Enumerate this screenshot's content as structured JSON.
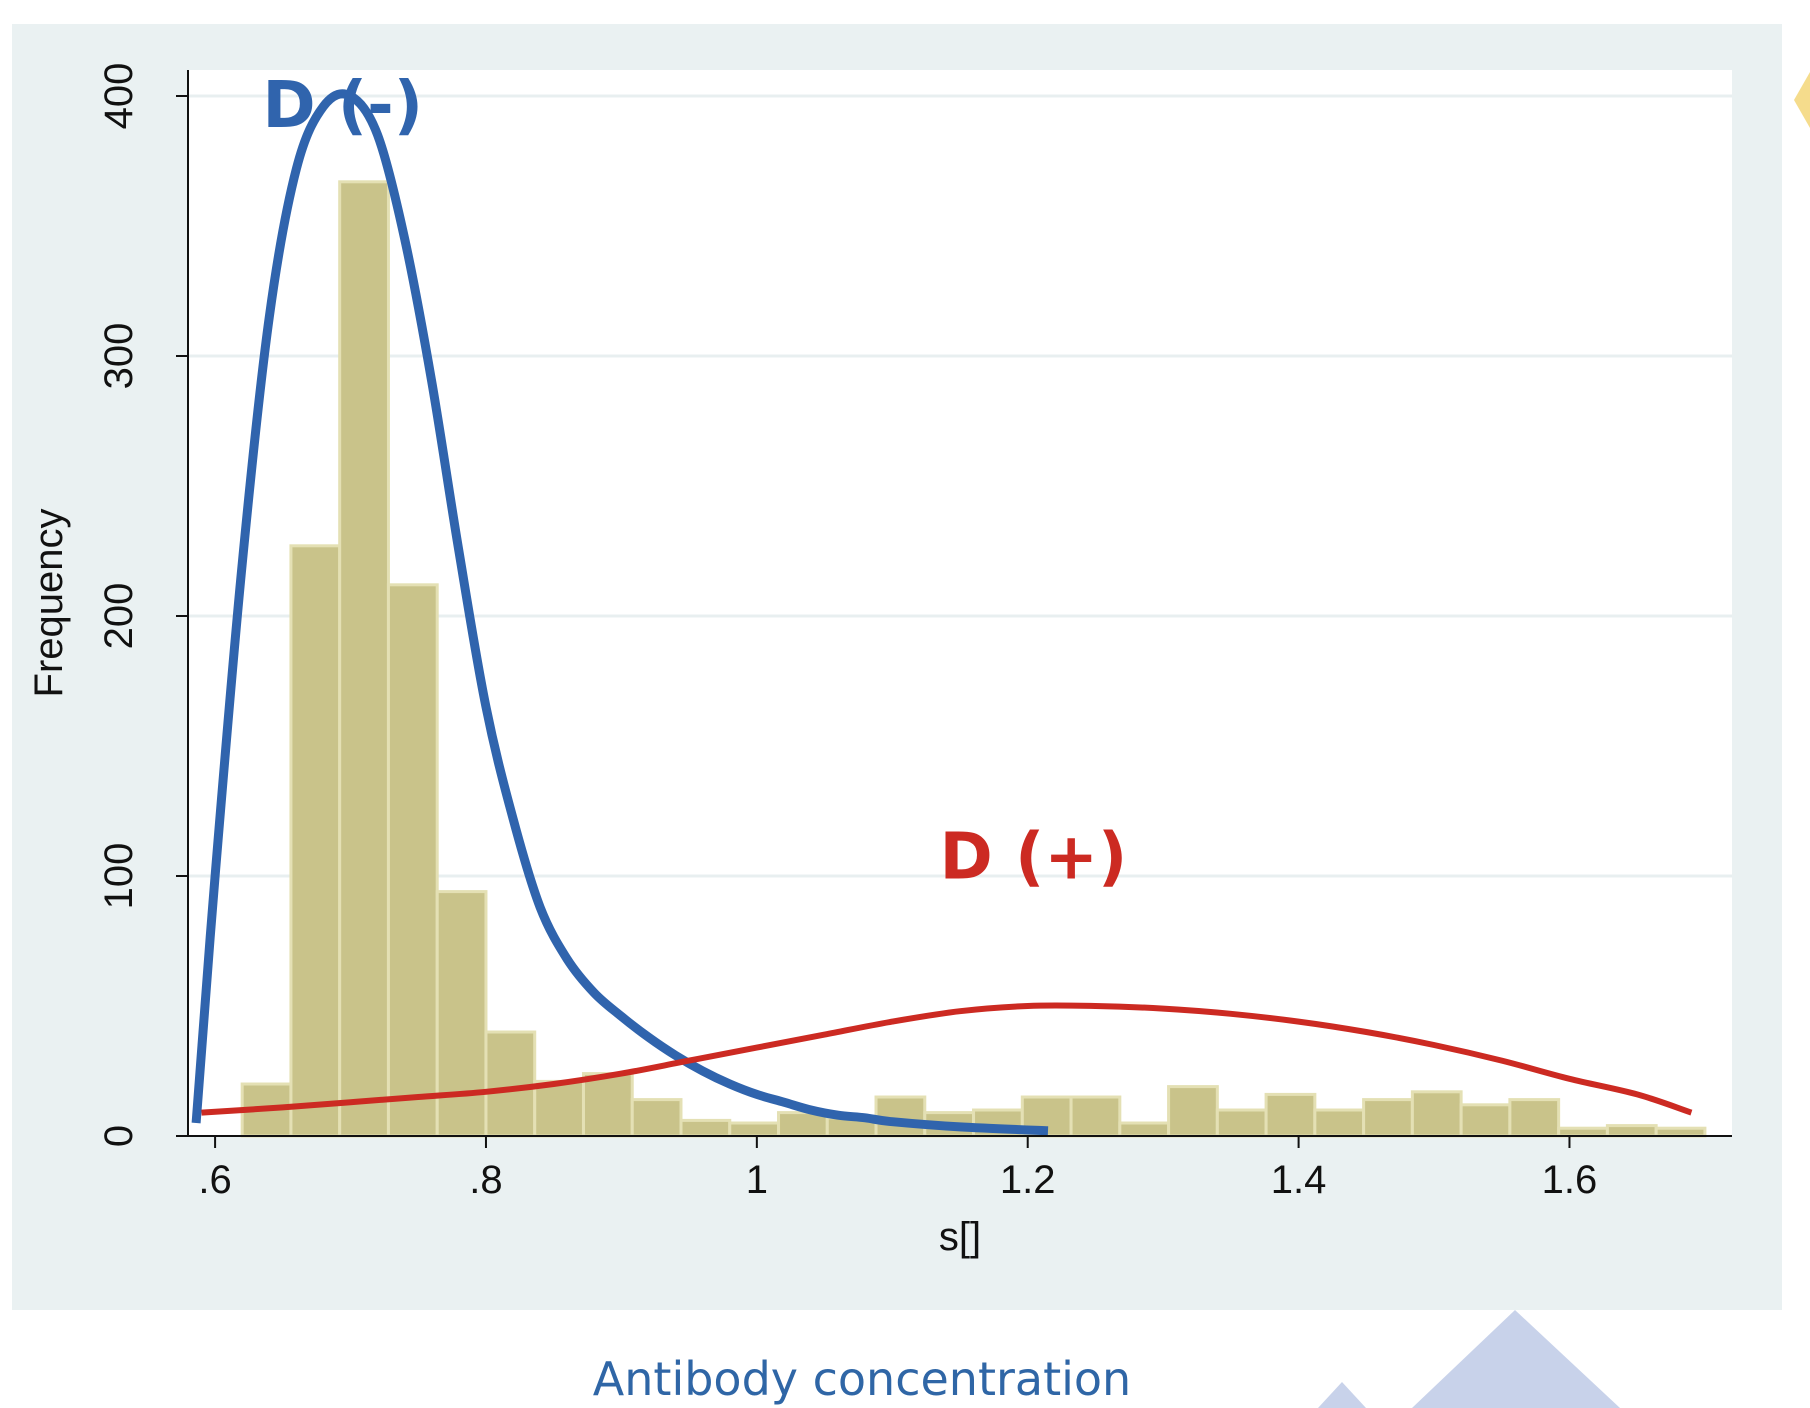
{
  "chart_data": {
    "type": "bar",
    "title": "",
    "xlabel": "s[]",
    "ylabel": "Frequency",
    "caption": "Antibody concentration",
    "xlim": [
      0.58,
      1.72
    ],
    "ylim": [
      0,
      410
    ],
    "x_ticks": [
      {
        "value": 0.6,
        "label": ".6"
      },
      {
        "value": 0.8,
        "label": ".8"
      },
      {
        "value": 1.0,
        "label": "1"
      },
      {
        "value": 1.2,
        "label": "1.2"
      },
      {
        "value": 1.4,
        "label": "1.4"
      },
      {
        "value": 1.6,
        "label": "1.6"
      }
    ],
    "y_ticks": [
      {
        "value": 0,
        "label": "0"
      },
      {
        "value": 100,
        "label": "100"
      },
      {
        "value": 200,
        "label": "200"
      },
      {
        "value": 300,
        "label": "300"
      },
      {
        "value": 400,
        "label": "400"
      }
    ],
    "grid": true,
    "bin_width": 0.036,
    "bins": [
      {
        "start": 0.62,
        "value": 20
      },
      {
        "start": 0.656,
        "value": 227
      },
      {
        "start": 0.692,
        "value": 367
      },
      {
        "start": 0.728,
        "value": 212
      },
      {
        "start": 0.764,
        "value": 94
      },
      {
        "start": 0.8,
        "value": 40
      },
      {
        "start": 0.836,
        "value": 21
      },
      {
        "start": 0.872,
        "value": 24
      },
      {
        "start": 0.908,
        "value": 14
      },
      {
        "start": 0.944,
        "value": 6
      },
      {
        "start": 0.98,
        "value": 5
      },
      {
        "start": 1.016,
        "value": 9
      },
      {
        "start": 1.052,
        "value": 7
      },
      {
        "start": 1.088,
        "value": 15
      },
      {
        "start": 1.124,
        "value": 9
      },
      {
        "start": 1.16,
        "value": 10
      },
      {
        "start": 1.196,
        "value": 15
      },
      {
        "start": 1.232,
        "value": 15
      },
      {
        "start": 1.268,
        "value": 5
      },
      {
        "start": 1.304,
        "value": 19
      },
      {
        "start": 1.34,
        "value": 10
      },
      {
        "start": 1.376,
        "value": 16
      },
      {
        "start": 1.412,
        "value": 10
      },
      {
        "start": 1.448,
        "value": 14
      },
      {
        "start": 1.484,
        "value": 17
      },
      {
        "start": 1.52,
        "value": 12
      },
      {
        "start": 1.556,
        "value": 14
      },
      {
        "start": 1.592,
        "value": 3
      },
      {
        "start": 1.628,
        "value": 4
      },
      {
        "start": 1.664,
        "value": 3
      }
    ],
    "curves": [
      {
        "name": "D (-)",
        "color": "#3064ad",
        "label_at": [
          0.635,
          388
        ],
        "points": [
          [
            0.586,
            5
          ],
          [
            0.6,
            100
          ],
          [
            0.62,
            220
          ],
          [
            0.64,
            315
          ],
          [
            0.66,
            372
          ],
          [
            0.68,
            396
          ],
          [
            0.7,
            400
          ],
          [
            0.72,
            385
          ],
          [
            0.74,
            345
          ],
          [
            0.76,
            290
          ],
          [
            0.78,
            225
          ],
          [
            0.8,
            165
          ],
          [
            0.82,
            122
          ],
          [
            0.84,
            88
          ],
          [
            0.86,
            68
          ],
          [
            0.88,
            55
          ],
          [
            0.9,
            46
          ],
          [
            0.92,
            38
          ],
          [
            0.94,
            31
          ],
          [
            0.96,
            25
          ],
          [
            0.98,
            20
          ],
          [
            1.0,
            16
          ],
          [
            1.02,
            13
          ],
          [
            1.04,
            10
          ],
          [
            1.06,
            8
          ],
          [
            1.08,
            7
          ],
          [
            1.1,
            5.5
          ],
          [
            1.15,
            3.5
          ],
          [
            1.215,
            2
          ]
        ]
      },
      {
        "name": "D (+)",
        "color": "#cc2a22",
        "label_at": [
          1.135,
          99
        ],
        "points": [
          [
            0.59,
            9
          ],
          [
            0.65,
            11
          ],
          [
            0.7,
            13
          ],
          [
            0.75,
            15
          ],
          [
            0.8,
            17
          ],
          [
            0.85,
            20
          ],
          [
            0.9,
            24
          ],
          [
            0.95,
            29
          ],
          [
            1.0,
            34
          ],
          [
            1.05,
            39
          ],
          [
            1.1,
            44
          ],
          [
            1.15,
            48
          ],
          [
            1.2,
            50
          ],
          [
            1.25,
            50
          ],
          [
            1.3,
            49
          ],
          [
            1.35,
            47
          ],
          [
            1.4,
            44
          ],
          [
            1.45,
            40
          ],
          [
            1.5,
            35
          ],
          [
            1.55,
            29
          ],
          [
            1.6,
            22
          ],
          [
            1.65,
            16
          ],
          [
            1.69,
            9
          ]
        ]
      }
    ]
  }
}
